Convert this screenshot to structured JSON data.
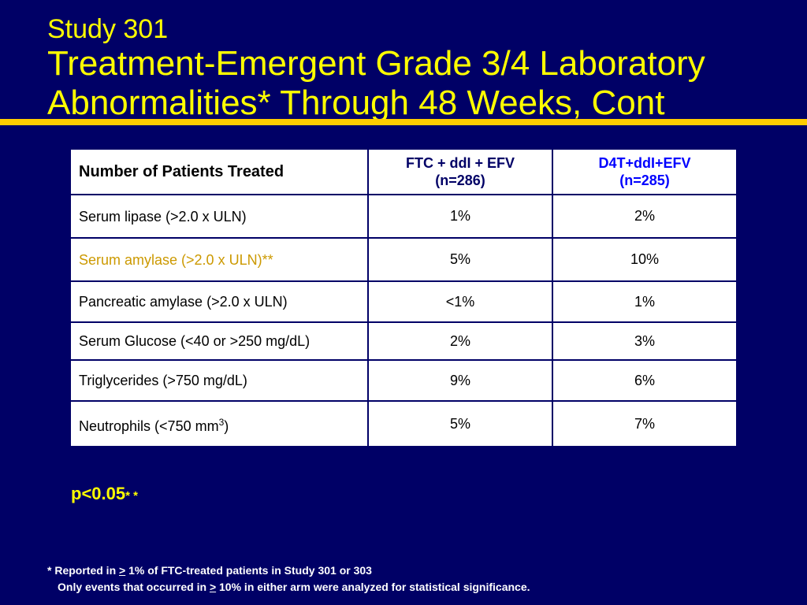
{
  "title": {
    "line1": "Study 301",
    "line2": "Treatment-Emergent Grade 3/4 Laboratory",
    "line3": "Abnormalities* Through 48 Weeks, Cont"
  },
  "table": {
    "header": {
      "label": "Number of Patients Treated",
      "col1_line1": "FTC + ddI + EFV",
      "col1_line2": "(n=286)",
      "col2_line1": "D4T+ddI+EFV",
      "col2_line2": "(n=285)"
    },
    "rows": [
      {
        "label": "Serum lipase (>2.0 x ULN)",
        "v1": "1%",
        "v2": "2%"
      },
      {
        "label": "Serum amylase (>2.0 x ULN)**",
        "v1": "5%",
        "v2": "10%"
      },
      {
        "label": "Pancreatic amylase (>2.0 x ULN)",
        "v1": "<1%",
        "v2": "1%"
      },
      {
        "label": "Serum Glucose (<40 or >250 mg/dL)",
        "v1": "2%",
        "v2": "3%"
      },
      {
        "label": "Triglycerides (>750 mg/dL)",
        "v1": "9%",
        "v2": "6%"
      },
      {
        "label_main": "Neutrophils (<750 mm",
        "label_sup": "3",
        "label_end": ")",
        "v1": "5%",
        "v2": "7%"
      }
    ]
  },
  "pvalue": {
    "text": "p<0.05",
    "sup": "* *"
  },
  "footnote": {
    "line1_a": "*  Reported in ",
    "line1_sym": ">",
    "line1_b": " 1% of FTC-treated patients in Study 301 or 303",
    "line2_a": "Only events that occurred in ",
    "line2_sym": ">",
    "line2_b": " 10% in either arm were analyzed for statistical significance."
  },
  "colors": {
    "background": "#000066",
    "title": "#ffff00",
    "rule": "#ffcc00",
    "highlight_row": "#cc9900",
    "col2_header": "#0000ff"
  }
}
